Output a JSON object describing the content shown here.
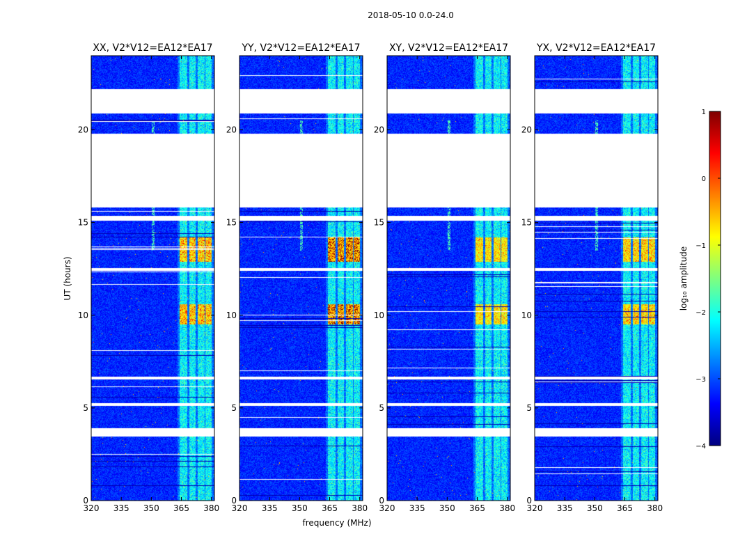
{
  "chart_data": {
    "type": "heatmap",
    "suptitle": "2018-05-10 0.0-24.0",
    "xlabel": "frequency (MHz)",
    "ylabel": "UT (hours)",
    "xlim": [
      320,
      381.5
    ],
    "ylim": [
      0,
      24
    ],
    "xticks": [
      320,
      335,
      350,
      365,
      380
    ],
    "yticks": [
      0,
      5,
      10,
      15,
      20
    ],
    "panels": [
      {
        "title": "XX, V2*V12=EA12*EA17",
        "peak": 0.2
      },
      {
        "title": "YY, V2*V12=EA12*EA17",
        "peak": 0.45
      },
      {
        "title": "XY, V2*V12=EA12*EA17",
        "peak": 0.1
      },
      {
        "title": "YX, V2*V12=EA12*EA17",
        "peak": 0.15
      }
    ],
    "rfi_bands_mhz": [
      [
        364,
        368
      ],
      [
        369,
        372
      ],
      [
        373,
        376.5
      ],
      [
        377,
        380
      ]
    ],
    "rfi_line_mhz": 351,
    "flagged_hours": [
      [
        20.9,
        22.2
      ],
      [
        15.8,
        19.8
      ],
      [
        15.1,
        15.35
      ],
      [
        12.4,
        12.55
      ],
      [
        6.55,
        6.7
      ],
      [
        5.1,
        5.25
      ],
      [
        3.45,
        3.9
      ]
    ],
    "strong_rfi_hours": [
      [
        9.5,
        10.6
      ],
      [
        12.9,
        14.2
      ]
    ],
    "colorbar": {
      "label": "log₁₀ amplitude",
      "min": -4,
      "max": 1,
      "ticks": [
        1,
        0,
        -1,
        -2,
        -3,
        -4
      ],
      "tick_labels": [
        "1",
        "0",
        "−1",
        "−2",
        "−3",
        "−4"
      ],
      "colors": [
        "#00007f",
        "#0000ff",
        "#007fff",
        "#00ffff",
        "#7fff7f",
        "#ffff00",
        "#ff7f00",
        "#ff0000",
        "#7f0000"
      ]
    }
  }
}
